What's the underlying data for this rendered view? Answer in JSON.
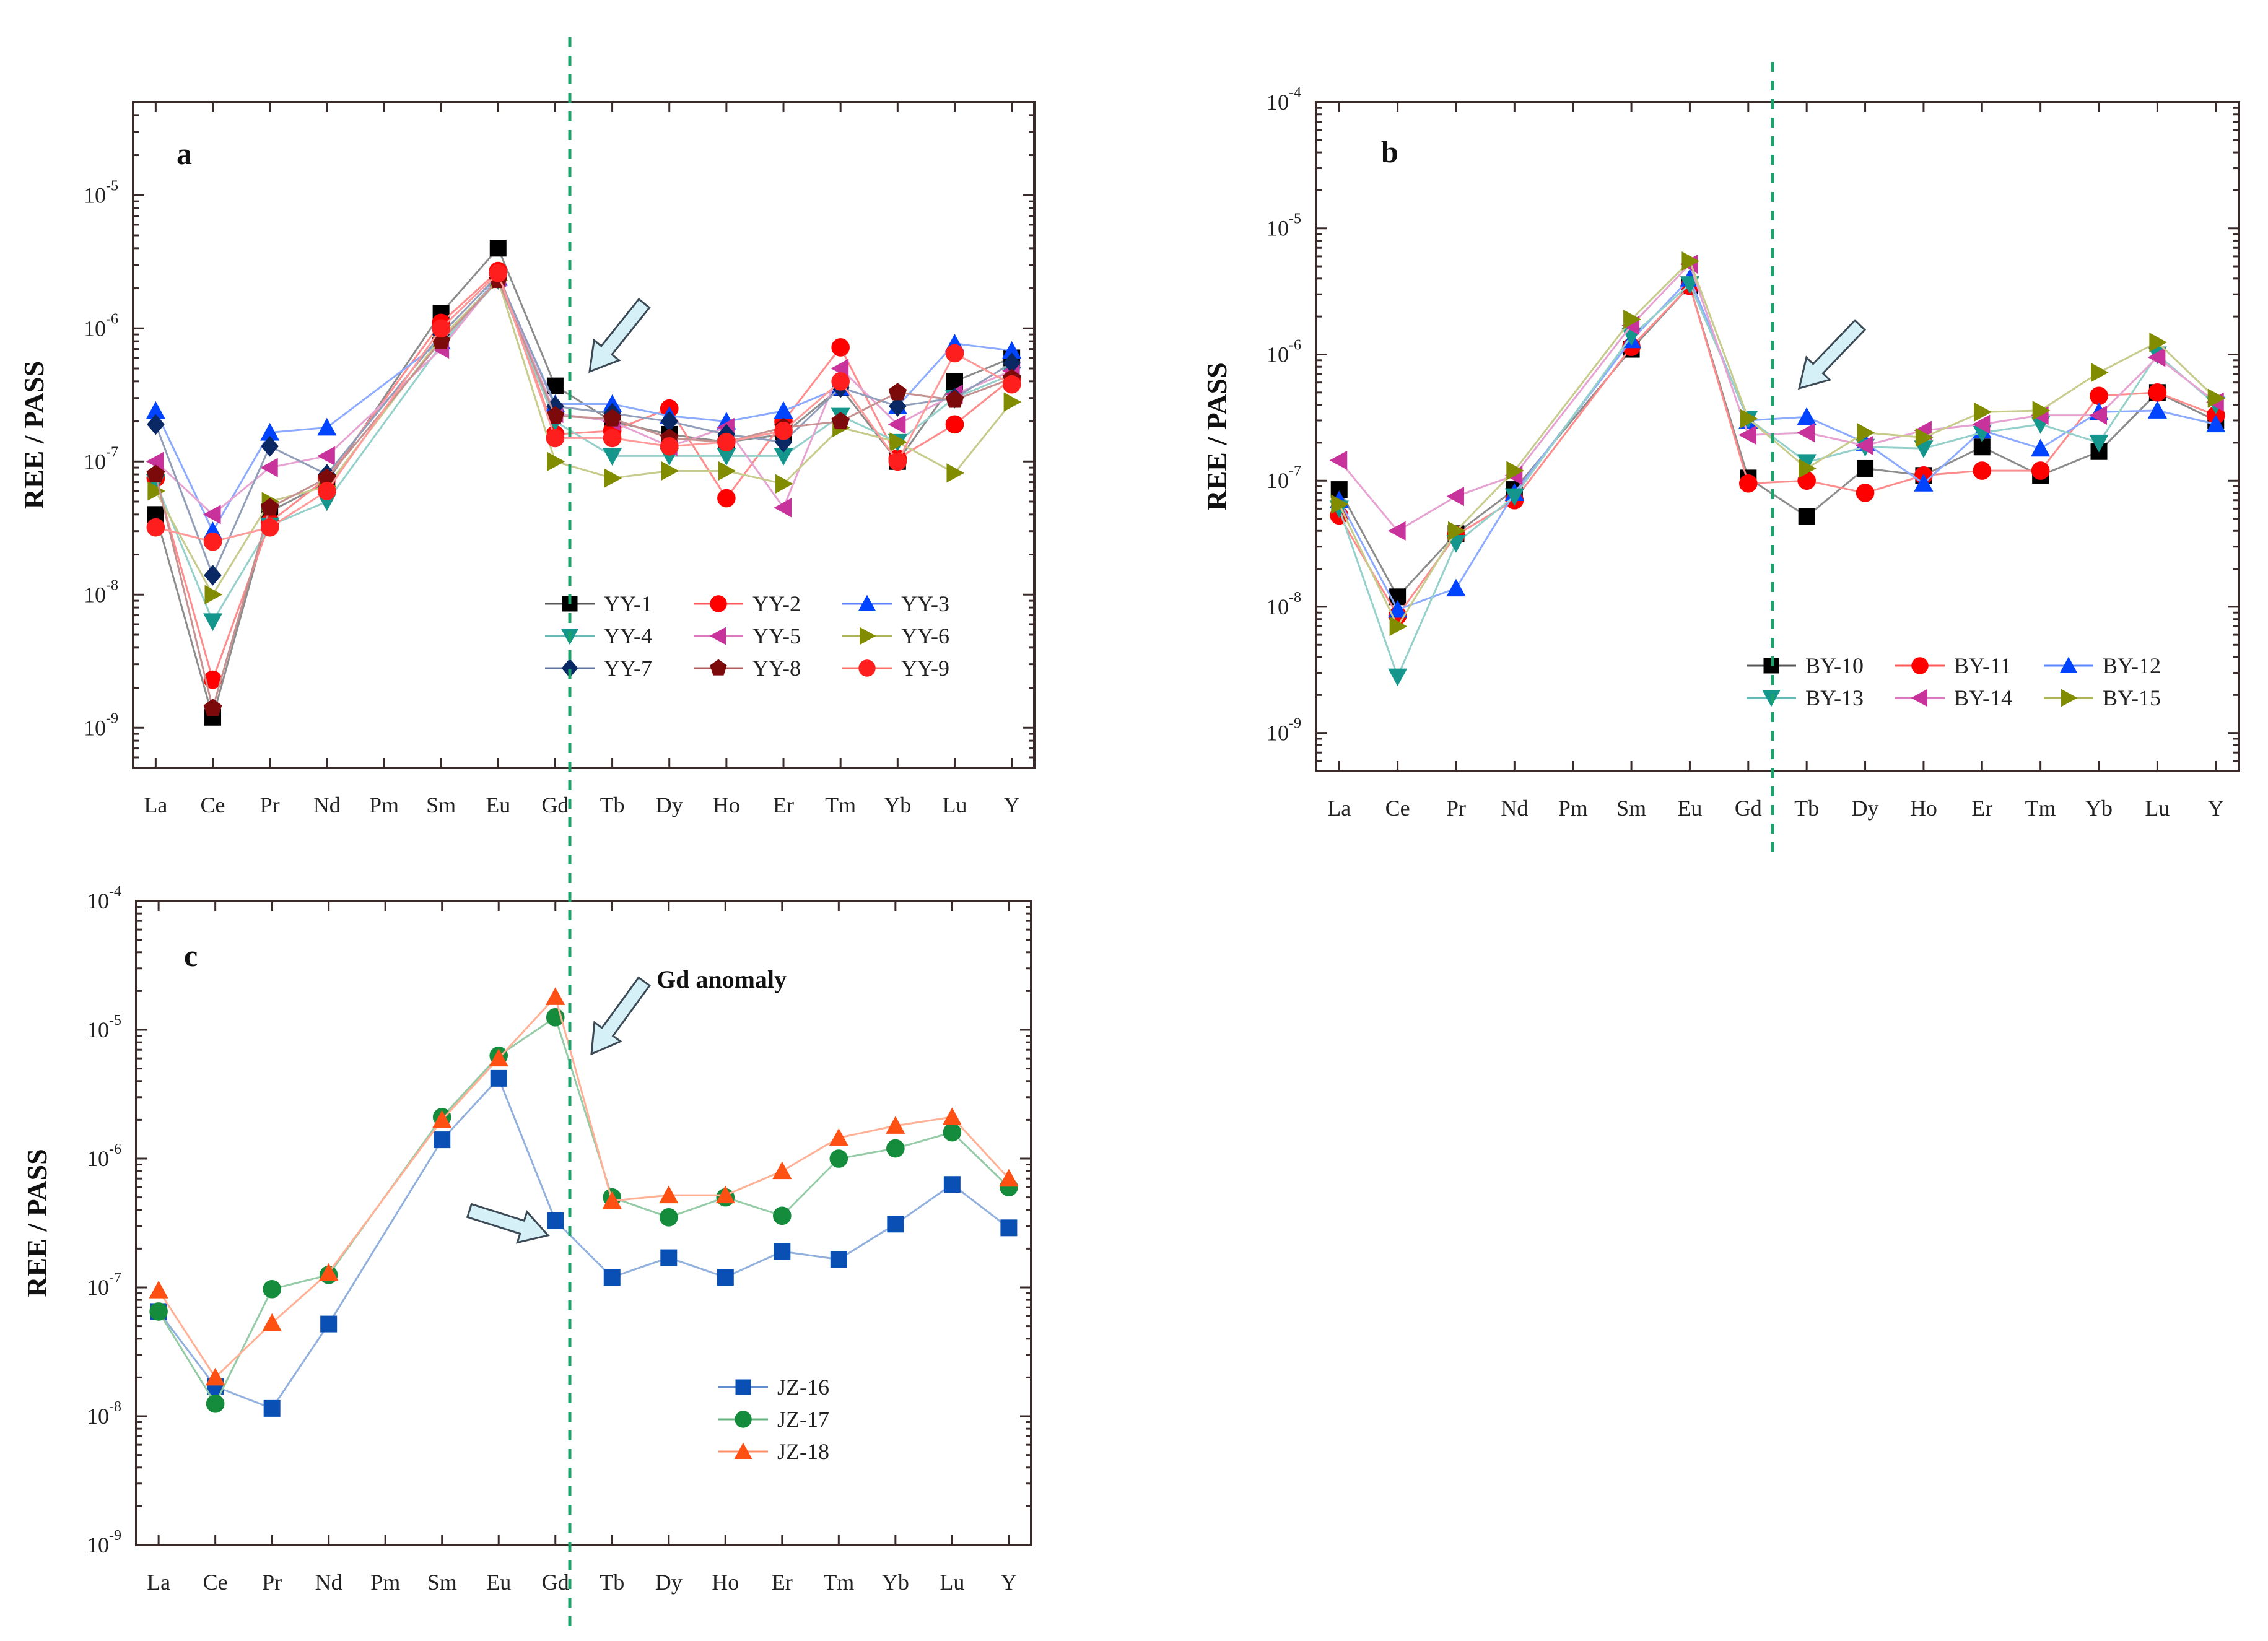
{
  "chart_data": [
    {
      "type": "line",
      "panel_label": "a",
      "x": [
        "La",
        "Ce",
        "Pr",
        "Nd",
        "Pm",
        "Sm",
        "Eu",
        "Gd",
        "Tb",
        "Dy",
        "Ho",
        "Er",
        "Tm",
        "Yb",
        "Lu",
        "Y"
      ],
      "xlabel": "",
      "ylabel": "REE / PASS",
      "yscale": "log",
      "ylim": [
        5e-10,
        5e-05
      ],
      "ytick_exponents": [
        "-9",
        "-8",
        "-7",
        "-6",
        "-5"
      ],
      "legend_placement": "lower-right",
      "legend_columns": 3,
      "annotation": "",
      "series": [
        {
          "name": "YY-1",
          "color": "#000000",
          "marker": "square",
          "values": [
            4e-08,
            1.2e-09,
            4.2e-08,
            7e-08,
            null,
            1.3e-06,
            4e-06,
            3.7e-07,
            2e-07,
            1.6e-07,
            1.4e-07,
            1.6e-07,
            3.6e-07,
            1e-07,
            4e-07,
            6e-07
          ]
        },
        {
          "name": "YY-2",
          "color": "#ff0000",
          "marker": "circle",
          "values": [
            7.5e-08,
            2.3e-09,
            3.5e-08,
            7.5e-08,
            null,
            1.1e-06,
            2.7e-06,
            1.6e-07,
            1.7e-07,
            2.5e-07,
            5.3e-08,
            2e-07,
            7.2e-07,
            1.05e-07,
            1.9e-07,
            4.2e-07
          ]
        },
        {
          "name": "YY-3",
          "color": "#0044ff",
          "marker": "triangle-up",
          "values": [
            2.4e-07,
            3e-08,
            1.65e-07,
            1.8e-07,
            null,
            8e-07,
            2.4e-06,
            2.7e-07,
            2.7e-07,
            2.2e-07,
            2e-07,
            2.4e-07,
            3.6e-07,
            2.6e-07,
            7.7e-07,
            6.8e-07
          ]
        },
        {
          "name": "YY-4",
          "color": "#14968c",
          "marker": "triangle-down",
          "values": [
            7e-08,
            6.3e-09,
            3.3e-08,
            5e-08,
            null,
            7.5e-07,
            2.3e-06,
            2e-07,
            1.1e-07,
            1.1e-07,
            1.1e-07,
            1.1e-07,
            2.2e-07,
            1.4e-07,
            3e-07,
            4.5e-07
          ]
        },
        {
          "name": "YY-5",
          "color": "#c8329b",
          "marker": "triangle-left",
          "values": [
            1e-07,
            4e-08,
            9e-08,
            1.1e-07,
            null,
            7e-07,
            2.4e-06,
            2.3e-07,
            2e-07,
            1.3e-07,
            1.8e-07,
            4.5e-08,
            5e-07,
            1.9e-07,
            3.2e-07,
            4.8e-07
          ]
        },
        {
          "name": "YY-6",
          "color": "#828c00",
          "marker": "triangle-right",
          "values": [
            6e-08,
            1e-08,
            5e-08,
            6.5e-08,
            null,
            8.5e-07,
            2.3e-06,
            1e-07,
            7.5e-08,
            8.5e-08,
            8.5e-08,
            6.8e-08,
            1.8e-07,
            1.4e-07,
            8.2e-08,
            2.8e-07
          ]
        },
        {
          "name": "YY-7",
          "color": "#0a2864",
          "marker": "diamond",
          "values": [
            1.9e-07,
            1.4e-08,
            1.3e-07,
            8e-08,
            null,
            9e-07,
            2.5e-06,
            2.6e-07,
            2.3e-07,
            2e-07,
            1.6e-07,
            1.4e-07,
            3.6e-07,
            2.6e-07,
            3e-07,
            5.5e-07
          ]
        },
        {
          "name": "YY-8",
          "color": "#7d0a0a",
          "marker": "pentagon",
          "values": [
            8e-08,
            1.4e-09,
            4.5e-08,
            7.5e-08,
            null,
            8e-07,
            2.3e-06,
            2.2e-07,
            2.1e-07,
            1.5e-07,
            1.4e-07,
            1.8e-07,
            2e-07,
            3.3e-07,
            2.9e-07,
            4.2e-07
          ]
        },
        {
          "name": "YY-9",
          "color": "#ff1e1e",
          "marker": "circle",
          "values": [
            3.2e-08,
            2.5e-08,
            3.2e-08,
            6e-08,
            null,
            1e-06,
            2.6e-06,
            1.5e-07,
            1.5e-07,
            1.3e-07,
            1.4e-07,
            1.7e-07,
            4e-07,
            1e-07,
            6.5e-07,
            3.8e-07
          ]
        }
      ]
    },
    {
      "type": "line",
      "panel_label": "b",
      "x": [
        "La",
        "Ce",
        "Pr",
        "Nd",
        "Pm",
        "Sm",
        "Eu",
        "Gd",
        "Tb",
        "Dy",
        "Ho",
        "Er",
        "Tm",
        "Yb",
        "Lu",
        "Y"
      ],
      "xlabel": "",
      "ylabel": "REE / PASS",
      "yscale": "log",
      "ylim": [
        5e-10,
        0.0001
      ],
      "ytick_exponents": [
        "-9",
        "-8",
        "-7",
        "-6",
        "-5",
        "-4"
      ],
      "legend_placement": "lower-right",
      "legend_columns": 3,
      "annotation": "",
      "series": [
        {
          "name": "BY-10",
          "color": "#000000",
          "marker": "square",
          "values": [
            8.5e-08,
            1.2e-08,
            3.8e-08,
            8.5e-08,
            null,
            1.1e-06,
            3.5e-06,
            1.05e-07,
            5.2e-08,
            1.25e-07,
            1.1e-07,
            1.85e-07,
            1.1e-07,
            1.7e-07,
            5e-07,
            3e-07
          ]
        },
        {
          "name": "BY-11",
          "color": "#ff0000",
          "marker": "circle",
          "values": [
            5.3e-08,
            8.5e-09,
            3.7e-08,
            7e-08,
            null,
            1.15e-06,
            3.5e-06,
            9.5e-08,
            1e-07,
            8e-08,
            1.1e-07,
            1.2e-07,
            1.2e-07,
            4.7e-07,
            5e-07,
            3.3e-07
          ]
        },
        {
          "name": "BY-12",
          "color": "#0044ff",
          "marker": "triangle-up",
          "values": [
            7e-08,
            9.5e-09,
            1.4e-08,
            8e-08,
            null,
            1.3e-06,
            4e-06,
            3e-07,
            3.2e-07,
            2e-07,
            9.5e-08,
            2.5e-07,
            1.8e-07,
            3.5e-07,
            3.6e-07,
            2.8e-07
          ]
        },
        {
          "name": "BY-13",
          "color": "#14968c",
          "marker": "triangle-down",
          "values": [
            6e-08,
            2.8e-09,
            3.2e-08,
            7.5e-08,
            null,
            1.4e-06,
            3.6e-06,
            3.1e-07,
            1.4e-07,
            1.85e-07,
            1.8e-07,
            2.4e-07,
            2.8e-07,
            2e-07,
            1e-06,
            4e-07
          ]
        },
        {
          "name": "BY-14",
          "color": "#c8329b",
          "marker": "triangle-left",
          "values": [
            1.45e-07,
            4e-08,
            7.5e-08,
            1.1e-07,
            null,
            1.7e-06,
            5.2e-06,
            2.3e-07,
            2.4e-07,
            1.9e-07,
            2.5e-07,
            2.8e-07,
            3.3e-07,
            3.3e-07,
            9.5e-07,
            4.2e-07
          ]
        },
        {
          "name": "BY-15",
          "color": "#828c00",
          "marker": "triangle-right",
          "values": [
            6.5e-08,
            7e-09,
            4e-08,
            1.2e-07,
            null,
            1.9e-06,
            5.5e-06,
            3.1e-07,
            1.25e-07,
            2.4e-07,
            2.2e-07,
            3.5e-07,
            3.6e-07,
            7.2e-07,
            1.25e-06,
            4.5e-07
          ]
        }
      ]
    },
    {
      "type": "line",
      "panel_label": "c",
      "x": [
        "La",
        "Ce",
        "Pr",
        "Nd",
        "Pm",
        "Sm",
        "Eu",
        "Gd",
        "Tb",
        "Dy",
        "Ho",
        "Er",
        "Tm",
        "Yb",
        "Lu",
        "Y"
      ],
      "xlabel": "",
      "ylabel": "REE / PASS",
      "yscale": "log",
      "ylim": [
        1e-09,
        0.0001
      ],
      "ytick_exponents": [
        "-9",
        "-8",
        "-7",
        "-6",
        "-5",
        "-4"
      ],
      "legend_placement": "lower-right",
      "legend_columns": 1,
      "annotation": "Gd anomaly",
      "series": [
        {
          "name": "JZ-16",
          "color": "#0a50b4",
          "marker": "square",
          "values": [
            6.5e-08,
            1.7e-08,
            1.15e-08,
            5.2e-08,
            null,
            1.4e-06,
            4.2e-06,
            3.3e-07,
            1.2e-07,
            1.7e-07,
            1.2e-07,
            1.9e-07,
            1.65e-07,
            3.1e-07,
            6.3e-07,
            2.9e-07
          ]
        },
        {
          "name": "JZ-17",
          "color": "#148c3c",
          "marker": "circle",
          "values": [
            6.5e-08,
            1.25e-08,
            9.7e-08,
            1.25e-07,
            null,
            2.1e-06,
            6.3e-06,
            1.25e-05,
            5e-07,
            3.5e-07,
            5e-07,
            3.6e-07,
            1e-06,
            1.2e-06,
            1.6e-06,
            6e-07
          ]
        },
        {
          "name": "JZ-18",
          "color": "#ff5014",
          "marker": "triangle-up",
          "values": [
            9.5e-08,
            2e-08,
            5.3e-08,
            1.3e-07,
            null,
            2e-06,
            6e-06,
            1.8e-05,
            4.7e-07,
            5.2e-07,
            5.2e-07,
            8e-07,
            1.45e-06,
            1.8e-06,
            2.1e-06,
            7e-07
          ]
        }
      ]
    }
  ]
}
